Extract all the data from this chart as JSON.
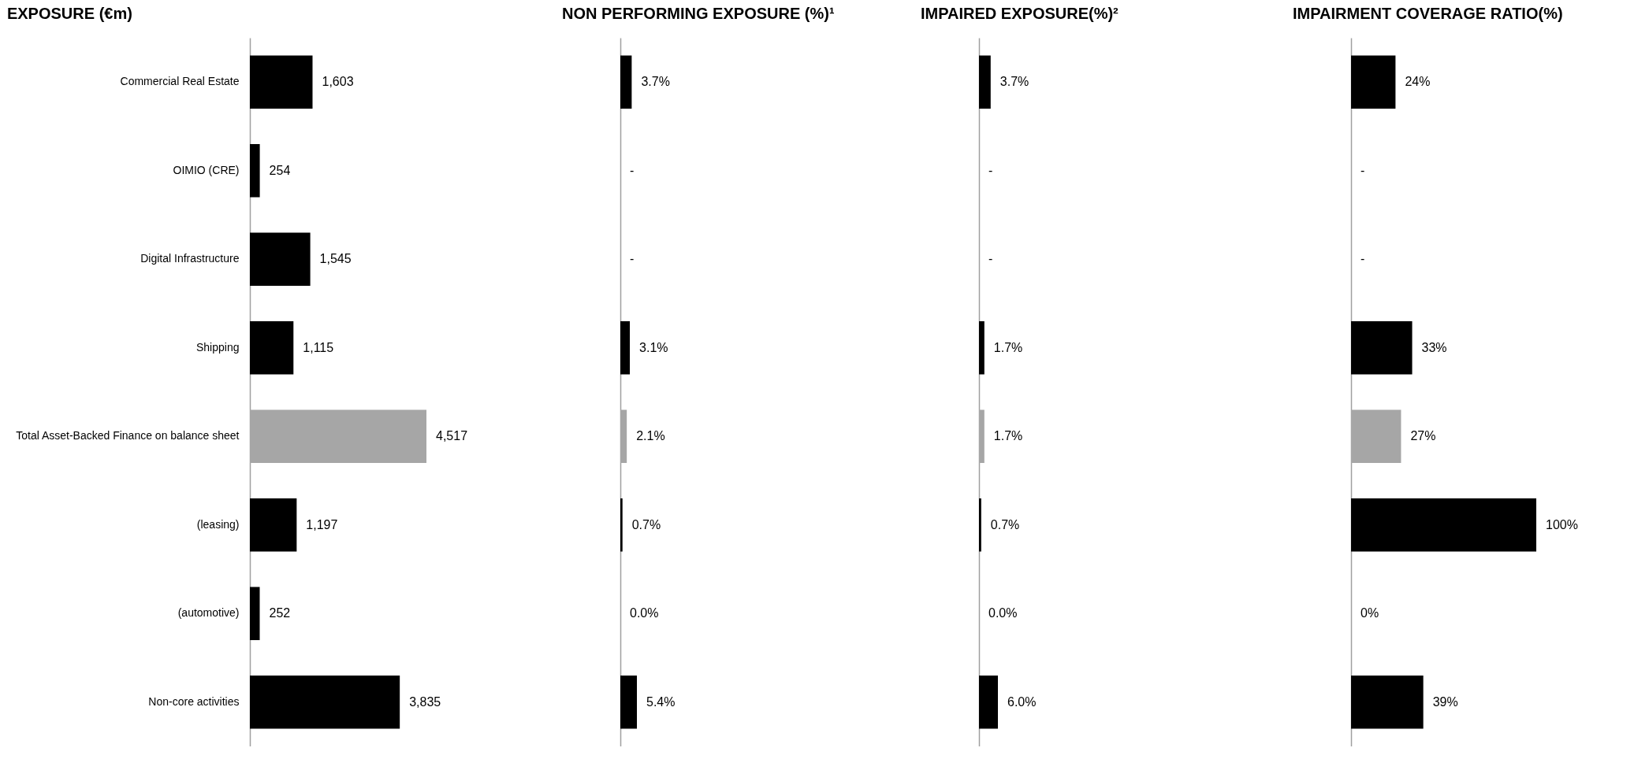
{
  "chart_data": [
    {
      "type": "bar",
      "orientation": "horizontal",
      "title": "EXPOSURE (€m)",
      "tick_labels": "y",
      "categories": [
        "Commercial Real Estate",
        "OIMIO (CRE)",
        "Digital Infrastructure",
        "Shipping",
        "Total Asset-Backed Finance on balance sheet",
        "(leasing)",
        "(automotive)",
        "Non-core activities"
      ],
      "values": [
        1603,
        254,
        1545,
        1115,
        4517,
        1197,
        252,
        3835
      ],
      "value_labels": [
        "1,603",
        "254",
        "1,545",
        "1,115",
        "4,517",
        "1,197",
        "252",
        "3,835"
      ],
      "colors": [
        "#000000",
        "#000000",
        "#000000",
        "#000000",
        "#a6a6a6",
        "#000000",
        "#000000",
        "#000000"
      ]
    },
    {
      "type": "bar",
      "orientation": "horizontal",
      "title": "NON PERFORMING EXPOSURE (%)¹",
      "categories": [
        null,
        null,
        null,
        null,
        null,
        null,
        null,
        null
      ],
      "values": [
        3.7,
        null,
        null,
        3.1,
        2.1,
        0.7,
        0.0,
        5.4
      ],
      "value_labels": [
        "3.7%",
        "-",
        "-",
        "3.1%",
        "2.1%",
        "0.7%",
        "0.0%",
        "5.4%"
      ],
      "colors": [
        "#000000",
        "#000000",
        "#000000",
        "#000000",
        "#a6a6a6",
        "#000000",
        "#000000",
        "#000000"
      ]
    },
    {
      "type": "bar",
      "orientation": "horizontal",
      "title": "IMPAIRED EXPOSURE(%)²",
      "categories": [
        null,
        null,
        null,
        null,
        null,
        null,
        null,
        null
      ],
      "values": [
        3.7,
        null,
        null,
        1.7,
        1.7,
        0.7,
        0.0,
        6.0
      ],
      "value_labels": [
        "3.7%",
        "-",
        "-",
        "1.7%",
        "1.7%",
        "0.7%",
        "0.0%",
        "6.0%"
      ],
      "colors": [
        "#000000",
        "#000000",
        "#000000",
        "#000000",
        "#a6a6a6",
        "#000000",
        "#000000",
        "#000000"
      ]
    },
    {
      "type": "bar",
      "orientation": "horizontal",
      "title": "IMPAIRMENT COVERAGE RATIO(%)",
      "categories": [
        null,
        null,
        null,
        null,
        null,
        null,
        null,
        null
      ],
      "values": [
        24,
        null,
        null,
        33,
        27,
        100,
        0,
        39
      ],
      "value_labels": [
        "24%",
        "-",
        "-",
        "33%",
        "27%",
        "100%",
        "0%",
        "39%"
      ],
      "colors": [
        "#000000",
        "#000000",
        "#000000",
        "#000000",
        "#a6a6a6",
        "#000000",
        "#000000",
        "#000000"
      ]
    }
  ]
}
